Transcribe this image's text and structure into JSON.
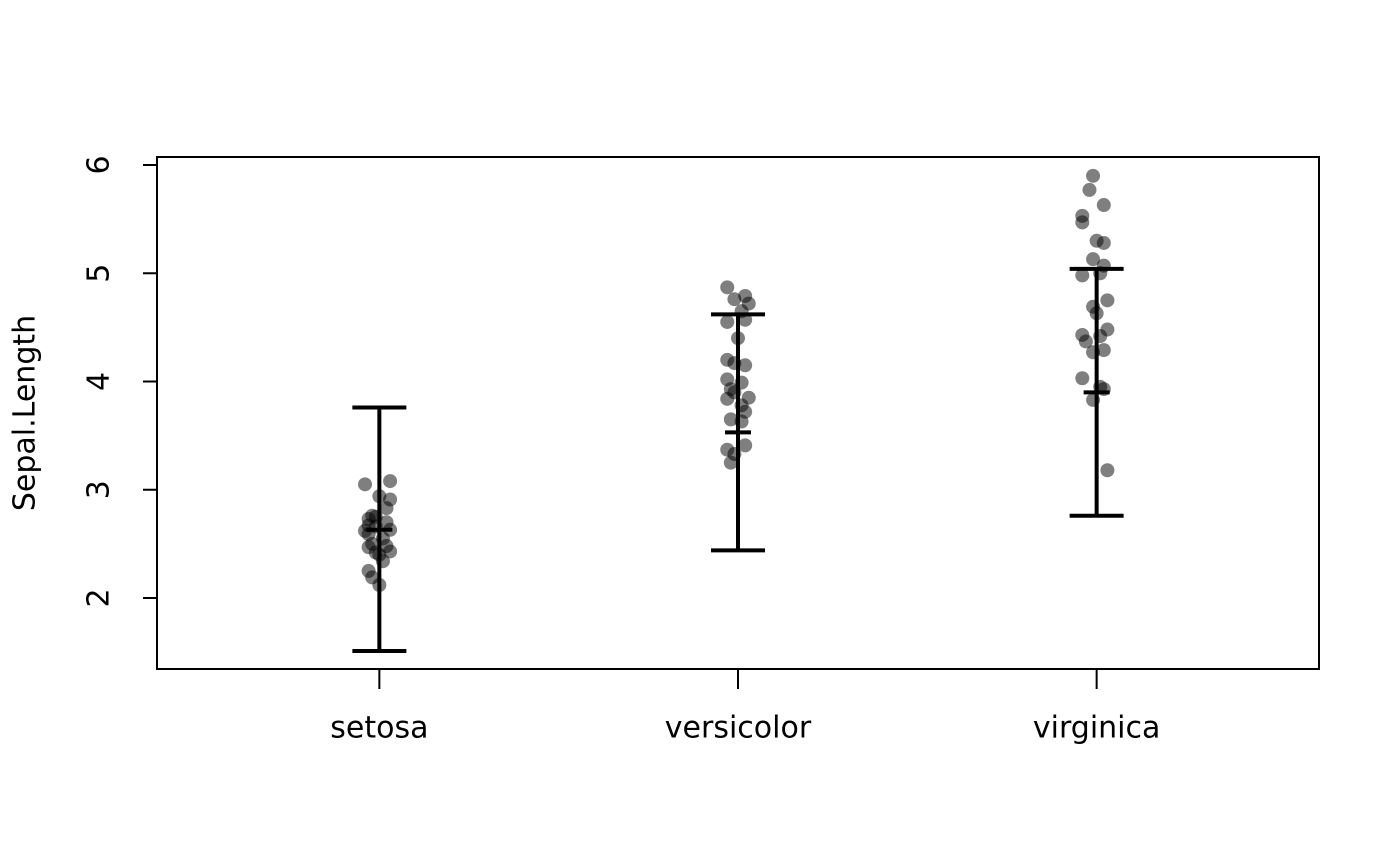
{
  "chart_data": {
    "type": "strip",
    "y_label": "Sepal.Length",
    "categories": [
      "setosa",
      "versicolor",
      "virginica"
    ],
    "xlim": [
      0.38,
      3.62
    ],
    "ylim": [
      1.344,
      6.074
    ],
    "yticks": [
      2,
      3,
      4,
      5,
      6
    ],
    "color": "#000000",
    "point_alpha": 0.5,
    "groups": [
      {
        "x": [
          0.96,
          1.03,
          1.0,
          1.03,
          1.02,
          0.99,
          0.97,
          0.98,
          1.02,
          0.99,
          1.03,
          0.97,
          1.01,
          0.98,
          1.02,
          0.97,
          0.99,
          1.0,
          1.03,
          1.01,
          0.97,
          0.98,
          1.0,
          0.96,
          0.97
        ],
        "y": [
          3.05,
          3.08,
          2.94,
          2.91,
          2.83,
          2.75,
          2.73,
          2.76,
          2.7,
          2.66,
          2.63,
          2.59,
          2.55,
          2.5,
          2.48,
          2.47,
          2.42,
          2.4,
          2.43,
          2.34,
          2.25,
          2.19,
          2.12,
          2.62,
          2.67
        ],
        "center": 2.63,
        "lower": 1.51,
        "upper": 3.76
      },
      {
        "x": [
          1.97,
          2.02,
          2.03,
          1.99,
          2.01,
          2.02,
          1.97,
          2.0,
          1.97,
          1.99,
          2.02,
          1.97,
          2.01,
          1.98,
          2.03,
          1.97,
          2.01,
          2.02,
          1.98,
          2.01,
          1.97,
          1.99,
          2.02,
          1.98,
          1.99
        ],
        "y": [
          4.87,
          4.79,
          4.72,
          4.76,
          4.65,
          4.57,
          4.55,
          4.4,
          4.2,
          4.17,
          4.15,
          4.02,
          3.99,
          3.93,
          3.85,
          3.84,
          3.78,
          3.72,
          3.65,
          3.63,
          3.37,
          3.33,
          3.41,
          3.25,
          3.9
        ],
        "center": 3.53,
        "lower": 2.44,
        "upper": 4.62
      },
      {
        "x": [
          2.99,
          2.98,
          3.02,
          2.96,
          2.96,
          3.0,
          3.02,
          2.99,
          3.02,
          3.01,
          2.96,
          3.03,
          2.99,
          3.0,
          2.96,
          3.03,
          3.01,
          2.97,
          3.02,
          2.99,
          2.96,
          3.01,
          3.02,
          2.99,
          3.03
        ],
        "y": [
          5.9,
          5.77,
          5.63,
          5.53,
          5.47,
          5.3,
          5.28,
          5.13,
          5.07,
          5.0,
          4.98,
          4.75,
          4.69,
          4.63,
          4.43,
          4.48,
          4.42,
          4.37,
          4.29,
          4.27,
          4.03,
          3.95,
          3.93,
          3.83,
          3.18
        ],
        "center": 3.9,
        "lower": 2.76,
        "upper": 5.04
      }
    ]
  }
}
